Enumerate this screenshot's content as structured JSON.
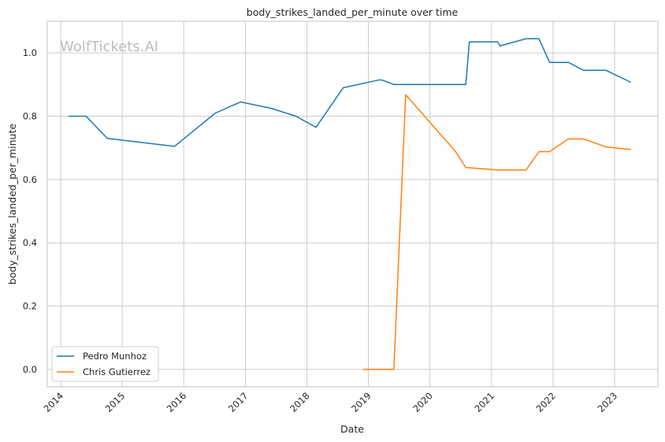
{
  "chart_data": {
    "type": "line",
    "title": "body_strikes_landed_per_minute over time",
    "xlabel": "Date",
    "ylabel": "body_strikes_landed_per_minute",
    "watermark": "WolfTickets.AI",
    "x_ticks": [
      "2014",
      "2015",
      "2016",
      "2017",
      "2018",
      "2019",
      "2020",
      "2021",
      "2022",
      "2023"
    ],
    "y_ticks": [
      "0.0",
      "0.2",
      "0.4",
      "0.6",
      "0.8",
      "1.0"
    ],
    "xlim": [
      "2013-10-13",
      "2023-09-15"
    ],
    "ylim": [
      -0.055,
      1.1
    ],
    "grid": true,
    "legend_position": "bottom-left",
    "series": [
      {
        "name": "Pedro Munhoz",
        "color": "#1f77b4",
        "points": [
          [
            "2014-02-15",
            0.8
          ],
          [
            "2014-05-31",
            0.8
          ],
          [
            "2014-10-04",
            0.73
          ],
          [
            "2015-11-07",
            0.705
          ],
          [
            "2016-07-07",
            0.81
          ],
          [
            "2016-12-03",
            0.845
          ],
          [
            "2017-06-03",
            0.825
          ],
          [
            "2017-10-28",
            0.8
          ],
          [
            "2018-02-24",
            0.765
          ],
          [
            "2018-08-04",
            0.89
          ],
          [
            "2019-03-09",
            0.915
          ],
          [
            "2019-03-30",
            0.913
          ],
          [
            "2019-06-01",
            0.9
          ],
          [
            "2020-08-01",
            0.9
          ],
          [
            "2020-08-22",
            1.035
          ],
          [
            "2021-02-06",
            1.035
          ],
          [
            "2021-02-20",
            1.022
          ],
          [
            "2021-07-24",
            1.045
          ],
          [
            "2021-10-09",
            1.045
          ],
          [
            "2021-12-11",
            0.97
          ],
          [
            "2022-04-02",
            0.97
          ],
          [
            "2022-07-02",
            0.945
          ],
          [
            "2022-11-12",
            0.945
          ],
          [
            "2023-04-08",
            0.907
          ]
        ]
      },
      {
        "name": "Chris Gutierrez",
        "color": "#ff7f0e",
        "points": [
          [
            "2018-11-30",
            0.0
          ],
          [
            "2019-06-01",
            0.0
          ],
          [
            "2019-08-10",
            0.868
          ],
          [
            "2020-05-30",
            0.69
          ],
          [
            "2020-08-01",
            0.638
          ],
          [
            "2021-02-06",
            0.63
          ],
          [
            "2021-07-24",
            0.63
          ],
          [
            "2021-10-09",
            0.688
          ],
          [
            "2021-12-11",
            0.688
          ],
          [
            "2022-04-02",
            0.728
          ],
          [
            "2022-07-02",
            0.728
          ],
          [
            "2022-11-12",
            0.703
          ],
          [
            "2023-04-08",
            0.695
          ]
        ]
      }
    ]
  }
}
